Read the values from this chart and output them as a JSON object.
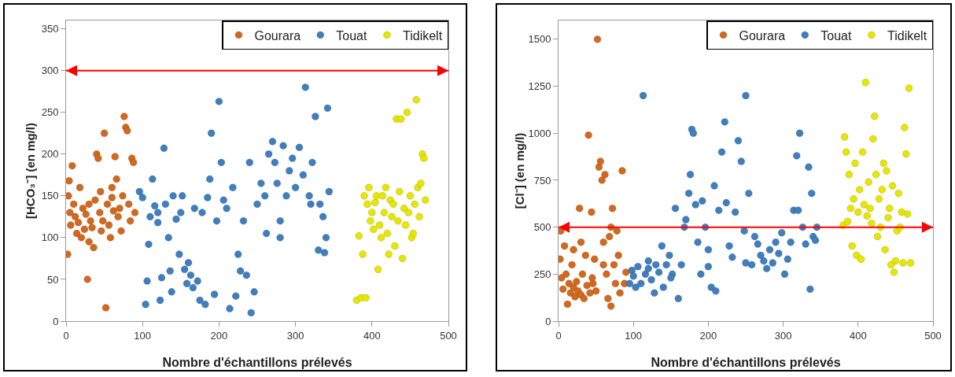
{
  "chart_data": [
    {
      "type": "scatter",
      "xlabel": "Nombre d'échantillons prélevés",
      "ylabel": "[HCO₃⁻] (en mg/l)",
      "xlim": [
        0,
        500
      ],
      "xticks": [
        0,
        100,
        200,
        300,
        400,
        500
      ],
      "ylim": [
        0,
        360
      ],
      "yticks": [
        0,
        50,
        100,
        150,
        200,
        250,
        300,
        350
      ],
      "grid": false,
      "legend": "top right",
      "marker": "circle",
      "ref_lines": [
        {
          "axis": "y",
          "value": 300,
          "color": "#ff0000"
        }
      ],
      "series": [
        {
          "name": "Gourara",
          "color": "#d2691e",
          "x": [
            2,
            3,
            4,
            5,
            6,
            8,
            10,
            12,
            14,
            16,
            18,
            20,
            22,
            24,
            26,
            28,
            30,
            32,
            34,
            36,
            38,
            40,
            42,
            44,
            46,
            48,
            50,
            52,
            54,
            56,
            58,
            60,
            62,
            64,
            66,
            68,
            70,
            72,
            74,
            76,
            78,
            80,
            82,
            84,
            86,
            88,
            90,
            60,
            30,
            45
          ],
          "values": [
            80,
            150,
            168,
            130,
            115,
            186,
            140,
            125,
            105,
            118,
            160,
            100,
            135,
            110,
            128,
            50,
            95,
            120,
            112,
            88,
            145,
            200,
            195,
            130,
            108,
            120,
            225,
            16,
            140,
            115,
            100,
            148,
            132,
            197,
            170,
            125,
            135,
            108,
            150,
            245,
            232,
            228,
            140,
            120,
            195,
            190,
            130,
            160,
            140,
            155
          ]
        },
        {
          "name": "Touat",
          "color": "#3f7fbf",
          "x": [
            96,
            100,
            104,
            106,
            108,
            110,
            113,
            116,
            120,
            123,
            125,
            128,
            130,
            134,
            136,
            138,
            140,
            144,
            148,
            152,
            155,
            158,
            160,
            163,
            166,
            168,
            172,
            175,
            178,
            182,
            185,
            188,
            190,
            194,
            197,
            200,
            203,
            206,
            210,
            214,
            218,
            222,
            225,
            228,
            232,
            236,
            240,
            242,
            246,
            250,
            255,
            260,
            265,
            270,
            273,
            276,
            280,
            284,
            288,
            292,
            296,
            300,
            305,
            310,
            313,
            318,
            322,
            326,
            330,
            332,
            336,
            340,
            342,
            344,
            338,
            262,
            280,
            150,
            120,
            320
          ],
          "values": [
            155,
            148,
            20,
            48,
            92,
            125,
            170,
            138,
            118,
            25,
            52,
            207,
            140,
            100,
            60,
            35,
            150,
            122,
            80,
            150,
            62,
            45,
            70,
            55,
            40,
            135,
            48,
            25,
            130,
            20,
            148,
            170,
            225,
            32,
            120,
            263,
            190,
            145,
            135,
            15,
            160,
            30,
            80,
            60,
            120,
            55,
            190,
            10,
            35,
            140,
            165,
            150,
            200,
            215,
            190,
            165,
            120,
            210,
            150,
            180,
            195,
            160,
            208,
            175,
            280,
            150,
            190,
            245,
            85,
            140,
            125,
            100,
            255,
            155,
            82,
            105,
            100,
            130,
            130,
            140
          ]
        },
        {
          "name": "Tidikelt",
          "color": "#e6e600",
          "x": [
            380,
            383,
            386,
            388,
            390,
            392,
            394,
            396,
            398,
            400,
            402,
            404,
            406,
            408,
            410,
            412,
            414,
            416,
            418,
            420,
            422,
            424,
            426,
            428,
            430,
            432,
            434,
            436,
            438,
            440,
            442,
            444,
            446,
            448,
            450,
            452,
            454,
            456,
            458,
            460,
            462,
            464,
            466,
            468,
            470
          ],
          "values": [
            25,
            102,
            28,
            80,
            150,
            28,
            140,
            160,
            120,
            130,
            110,
            142,
            150,
            62,
            115,
            100,
            150,
            130,
            160,
            105,
            80,
            145,
            125,
            140,
            90,
            242,
            120,
            155,
            242,
            75,
            135,
            115,
            250,
            130,
            150,
            100,
            105,
            140,
            265,
            160,
            125,
            165,
            200,
            195,
            145
          ]
        }
      ]
    },
    {
      "type": "scatter",
      "xlabel": "Nombre d'échantillons prélevés",
      "ylabel": "[Cl⁻] (en mg/l)",
      "xlim": [
        0,
        500
      ],
      "xticks": [
        0,
        100,
        200,
        300,
        400,
        500
      ],
      "ylim": [
        0,
        1600
      ],
      "yticks": [
        0,
        250,
        500,
        750,
        1000,
        1250,
        1500
      ],
      "grid": false,
      "legend": "top right",
      "marker": "circle",
      "ref_lines": [
        {
          "axis": "y",
          "value": 500,
          "color": "#ff0000"
        }
      ],
      "series": [
        {
          "name": "Gourara",
          "color": "#d2691e",
          "x": [
            2,
            3,
            4,
            6,
            8,
            10,
            12,
            14,
            16,
            18,
            20,
            22,
            24,
            26,
            28,
            30,
            32,
            34,
            36,
            38,
            40,
            42,
            44,
            46,
            48,
            50,
            52,
            54,
            56,
            58,
            60,
            62,
            64,
            66,
            68,
            70,
            72,
            74,
            76,
            78,
            80,
            82,
            85,
            88,
            90,
            20,
            30,
            60,
            45,
            70
          ],
          "values": [
            330,
            480,
            230,
            170,
            400,
            250,
            90,
            200,
            150,
            300,
            180,
            130,
            210,
            160,
            600,
            140,
            250,
            120,
            350,
            190,
            990,
            150,
            580,
            200,
            330,
            160,
            1500,
            820,
            850,
            750,
            420,
            780,
            250,
            120,
            450,
            80,
            600,
            300,
            200,
            480,
            350,
            150,
            800,
            200,
            260,
            380,
            420,
            300,
            230,
            500
          ]
        },
        {
          "name": "Touat",
          "color": "#3f7fbf",
          "x": [
            95,
            98,
            100,
            103,
            106,
            110,
            113,
            116,
            120,
            124,
            128,
            130,
            134,
            138,
            140,
            144,
            148,
            152,
            156,
            160,
            164,
            168,
            170,
            174,
            176,
            178,
            180,
            183,
            186,
            190,
            192,
            196,
            200,
            204,
            208,
            210,
            214,
            218,
            222,
            224,
            228,
            232,
            236,
            240,
            244,
            248,
            250,
            254,
            258,
            262,
            266,
            270,
            274,
            278,
            282,
            286,
            290,
            294,
            298,
            302,
            306,
            310,
            314,
            318,
            320,
            322,
            326,
            330,
            334,
            336,
            338,
            340,
            343,
            345,
            250,
            200,
            150,
            120
          ],
          "values": [
            200,
            270,
            240,
            180,
            290,
            200,
            1200,
            250,
            320,
            220,
            150,
            300,
            260,
            400,
            180,
            300,
            350,
            250,
            600,
            120,
            300,
            500,
            540,
            680,
            780,
            1020,
            1000,
            620,
            420,
            250,
            640,
            500,
            290,
            180,
            720,
            160,
            590,
            900,
            1060,
            630,
            400,
            340,
            580,
            960,
            850,
            480,
            1200,
            680,
            300,
            450,
            410,
            350,
            320,
            280,
            380,
            310,
            420,
            360,
            470,
            250,
            330,
            420,
            590,
            880,
            590,
            1000,
            500,
            410,
            820,
            170,
            680,
            450,
            430,
            500,
            310,
            380,
            230,
            280
          ]
        },
        {
          "name": "Tidikelt",
          "color": "#e6e600",
          "x": [
            380,
            382,
            384,
            386,
            388,
            390,
            392,
            394,
            396,
            398,
            400,
            402,
            404,
            406,
            408,
            410,
            412,
            414,
            416,
            418,
            420,
            422,
            424,
            426,
            428,
            430,
            432,
            434,
            436,
            438,
            440,
            442,
            444,
            446,
            448,
            450,
            452,
            454,
            456,
            458,
            460,
            462,
            464,
            466,
            468,
            470
          ],
          "values": [
            510,
            980,
            900,
            530,
            780,
            600,
            400,
            650,
            840,
            350,
            580,
            700,
            330,
            900,
            620,
            1270,
            560,
            740,
            600,
            520,
            970,
            1090,
            780,
            450,
            650,
            500,
            700,
            840,
            380,
            800,
            550,
            600,
            300,
            720,
            260,
            320,
            480,
            680,
            500,
            580,
            310,
            1030,
            890,
            570,
            1240,
            310
          ]
        }
      ]
    }
  ]
}
